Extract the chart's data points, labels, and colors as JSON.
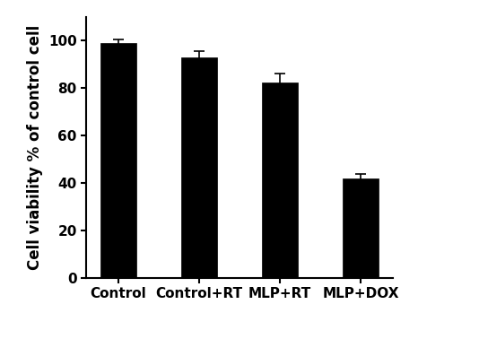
{
  "categories": [
    "Control",
    "Control+RT",
    "MLP+RT",
    "MLP+DOX"
  ],
  "values": [
    99.0,
    93.0,
    82.5,
    42.0
  ],
  "errors": [
    1.5,
    2.5,
    3.5,
    2.0
  ],
  "bar_color": "#000000",
  "edge_color": "#000000",
  "bar_width": 0.45,
  "ylabel": "Cell viability % of control cell",
  "ylim": [
    0,
    110
  ],
  "yticks": [
    0,
    20,
    40,
    60,
    80,
    100
  ],
  "background_color": "#ffffff",
  "error_capsize": 4,
  "error_linewidth": 1.2,
  "error_color": "#000000",
  "tick_fontsize": 11,
  "label_fontsize": 12,
  "label_fontweight": "bold",
  "tick_fontweight": "bold",
  "figsize": [
    5.34,
    3.78
  ],
  "dpi": 100
}
